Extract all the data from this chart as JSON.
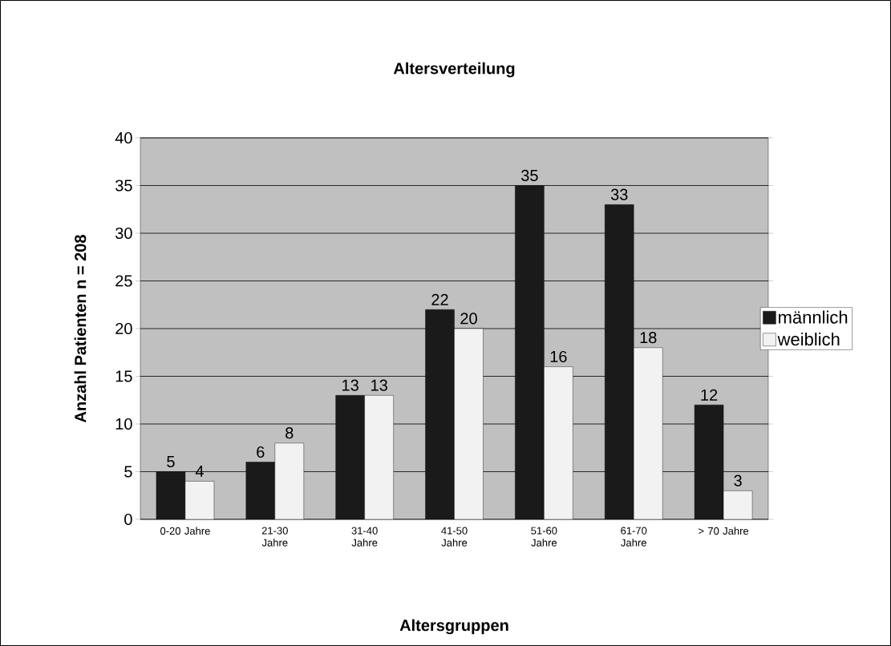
{
  "chart_data": {
    "type": "bar",
    "title": "Altersverteilung",
    "xlabel": "Altersgruppen",
    "ylabel": "Anzahl Patienten n = 208",
    "categories": [
      "0-20 Jahre",
      "21-30 Jahre",
      "31-40 Jahre",
      "41-50 Jahre",
      "51-60 Jahre",
      "61-70 Jahre",
      "> 70 Jahre"
    ],
    "series": [
      {
        "name": "männlich",
        "color": "#1a1a1a",
        "values": [
          5,
          6,
          13,
          22,
          35,
          33,
          12
        ]
      },
      {
        "name": "weiblich",
        "color": "#f2f2f2",
        "values": [
          4,
          8,
          13,
          20,
          16,
          18,
          3
        ]
      }
    ],
    "ylim": [
      0,
      40
    ],
    "yticks": [
      0,
      5,
      10,
      15,
      20,
      25,
      30,
      35,
      40
    ],
    "grid": "y",
    "legend": "right",
    "data_labels": true
  }
}
